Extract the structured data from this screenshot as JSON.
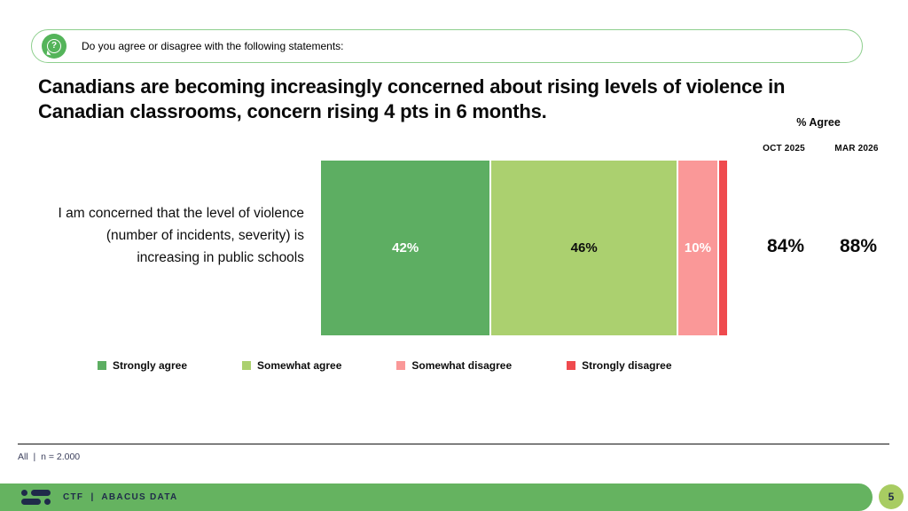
{
  "question_banner": {
    "icon": "question-bubble-icon",
    "text": "Do you agree or disagree with the following statements:"
  },
  "title": "Canadians are becoming increasingly concerned about rising levels of violence in Canadian classrooms, concern rising 4 pts in 6 months.",
  "agree_panel": {
    "header": "% Agree",
    "columns": [
      "OCT 2025",
      "MAR 2026"
    ],
    "values": [
      "84%",
      "88%"
    ]
  },
  "chart_data": {
    "type": "bar",
    "orientation": "horizontal-stacked",
    "title": "Canadians are becoming increasingly concerned about rising levels of violence in Canadian classrooms, concern rising 4 pts in 6 months.",
    "categories": [
      "I am concerned that the level of violence (number of incidents, severity) is increasing in public schools"
    ],
    "series": [
      {
        "name": "Strongly agree",
        "values": [
          42
        ],
        "label": "42%",
        "color": "#5dae62",
        "label_color": "#ffffff"
      },
      {
        "name": "Somewhat agree",
        "values": [
          46
        ],
        "label": "46%",
        "color": "#abd06f",
        "label_color": "#0d0d0d"
      },
      {
        "name": "Somewhat disagree",
        "values": [
          10
        ],
        "label": "10%",
        "color": "#fa9898",
        "label_color": "#ffffff"
      },
      {
        "name": "Strongly disagree",
        "values": [
          2
        ],
        "label": "",
        "color": "#ef4a4e",
        "label_color": "#ffffff"
      }
    ],
    "xlim": [
      0,
      100
    ],
    "legend_position": "bottom",
    "summary": {
      "header": "% Agree",
      "OCT 2025": "84%",
      "MAR 2026": "88%"
    }
  },
  "legend": [
    {
      "label": "Strongly agree",
      "color": "#5dae62"
    },
    {
      "label": "Somewhat agree",
      "color": "#abd06f"
    },
    {
      "label": "Somewhat disagree",
      "color": "#fa9898"
    },
    {
      "label": "Strongly disagree",
      "color": "#ef4a4e"
    }
  ],
  "footnote": "All  |  n = 2.000",
  "footer": {
    "brand": "CTF  |  ABACUS DATA",
    "page_number": "5"
  },
  "colors": {
    "banner_border": "#8ecf8e",
    "banner_icon": "#54b45a",
    "footer_bar": "#65b360",
    "page_badge": "#a8cc62",
    "brand_navy": "#1f2a4a"
  }
}
